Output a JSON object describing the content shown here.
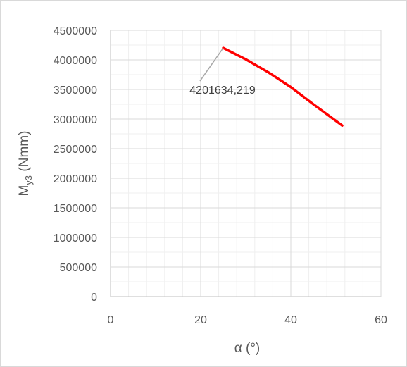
{
  "chart_data": {
    "type": "line",
    "xlabel": "α (°)",
    "ylabel_main": "M",
    "ylabel_sub": "y3",
    "ylabel_unit": " (Nmm)",
    "xlim": [
      0,
      60
    ],
    "ylim": [
      0,
      4500000
    ],
    "x_ticks": [
      "0",
      "20",
      "40",
      "60"
    ],
    "y_ticks": [
      "0",
      "500000",
      "1000000",
      "1500000",
      "2000000",
      "2500000",
      "3000000",
      "3500000",
      "4000000",
      "4500000"
    ],
    "grid": true,
    "series": [
      {
        "color": "#ff0000",
        "x": [
          25,
          30,
          35,
          40,
          45,
          51.4
        ],
        "y": [
          4201634.219,
          4010000,
          3790000,
          3540000,
          3250000,
          2890000
        ]
      }
    ],
    "annotation": {
      "text": "4201634,219",
      "x": 25,
      "y": 4201634.219
    }
  }
}
